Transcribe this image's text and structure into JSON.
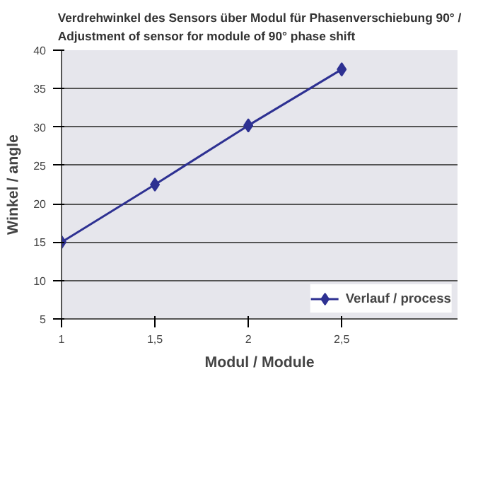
{
  "chart_data": {
    "type": "line",
    "title": "Verdrehwinkel des Sensors über Modul für Phasenverschiebung 90° /\nAdjustment of sensor for module of 90° phase shift",
    "xlabel": "Modul / Module",
    "ylabel": "Winkel / angle",
    "x": [
      1,
      1.5,
      2,
      2.5
    ],
    "series": [
      {
        "name": "Verlauf / process",
        "color": "#2e3192",
        "values": [
          15,
          22.5,
          30.2,
          37.5
        ]
      }
    ],
    "xlim": [
      1,
      3.12
    ],
    "xticks": [
      1,
      {
        "value": 1.5,
        "label": "1,5"
      },
      2,
      {
        "value": 2.5,
        "label": "2,5"
      }
    ],
    "ylim": [
      5,
      40
    ],
    "yticks": [
      5,
      10,
      15,
      20,
      25,
      30,
      35,
      40
    ],
    "grid": "y",
    "legend": "bottom right",
    "marker": "diamond",
    "line_style": "solid"
  }
}
